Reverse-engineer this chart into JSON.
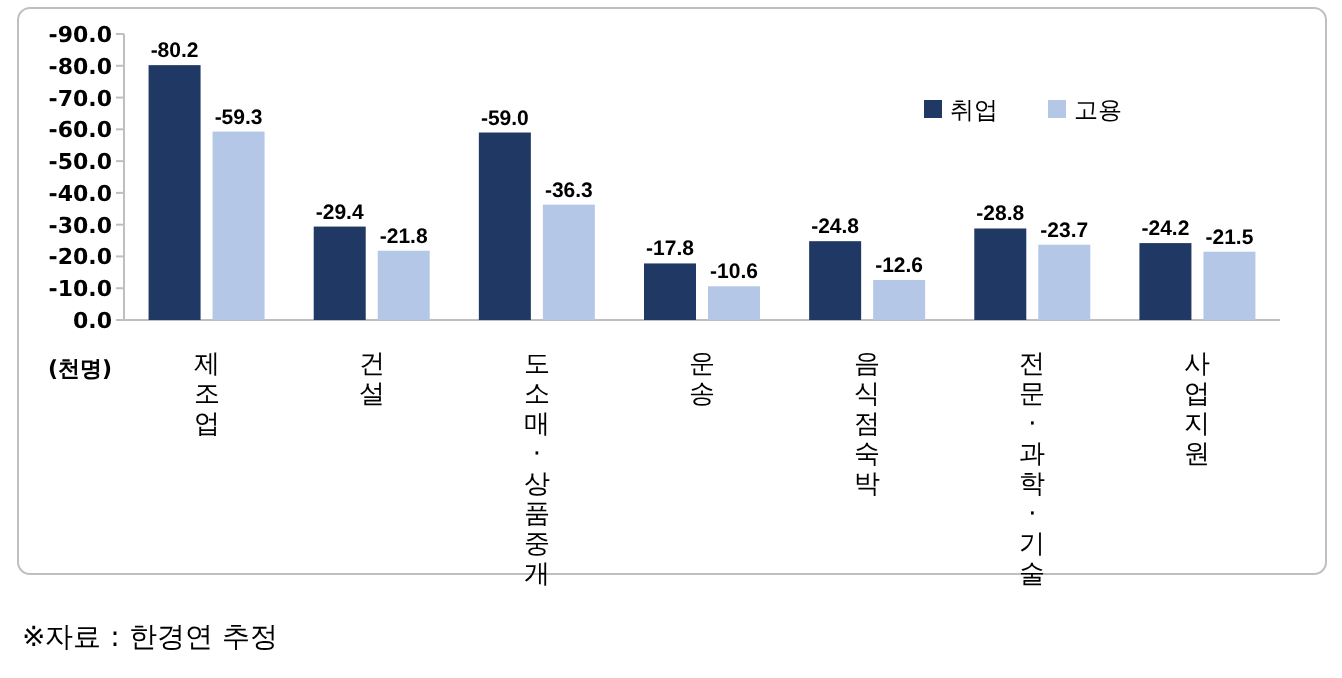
{
  "chart_data": {
    "type": "bar",
    "ylabel": "(천명)",
    "categories": [
      "제조업",
      "건설",
      "도소매·상품중개",
      "운송",
      "음식점숙박",
      "전문·과학·기술",
      "사업지원"
    ],
    "series": [
      {
        "name": "취업",
        "color": "#1f3864",
        "values": [
          -80.2,
          -29.4,
          -59.0,
          -17.8,
          -24.8,
          -28.8,
          -24.2
        ],
        "value_labels": [
          "-80.2",
          "-29.4",
          "-59.0",
          "-17.8",
          "-24.8",
          "-28.8",
          "-24.2"
        ]
      },
      {
        "name": "고용",
        "color": "#b4c7e7",
        "values": [
          -59.3,
          -21.8,
          -36.3,
          -10.6,
          -12.6,
          -23.7,
          -21.5
        ],
        "value_labels": [
          "-59.3",
          "-21.8",
          "-36.3",
          "-10.6",
          "-12.6",
          "-23.7",
          "-21.5"
        ]
      }
    ],
    "ylim": [
      0,
      -90
    ],
    "yticks": [
      {
        "value": 0,
        "label": "0.0"
      },
      {
        "value": -10,
        "label": "-10.0"
      },
      {
        "value": -20,
        "label": "-20.0"
      },
      {
        "value": -30,
        "label": "-30.0"
      },
      {
        "value": -40,
        "label": "-40.0"
      },
      {
        "value": -50,
        "label": "-50.0"
      },
      {
        "value": -60,
        "label": "-60.0"
      },
      {
        "value": -70,
        "label": "-70.0"
      },
      {
        "value": -80,
        "label": "-80.0"
      },
      {
        "value": -90,
        "label": "-90.0"
      }
    ],
    "legend": "top right",
    "grid": false,
    "annotations": [
      "※자료 : 한경연 추정"
    ]
  }
}
